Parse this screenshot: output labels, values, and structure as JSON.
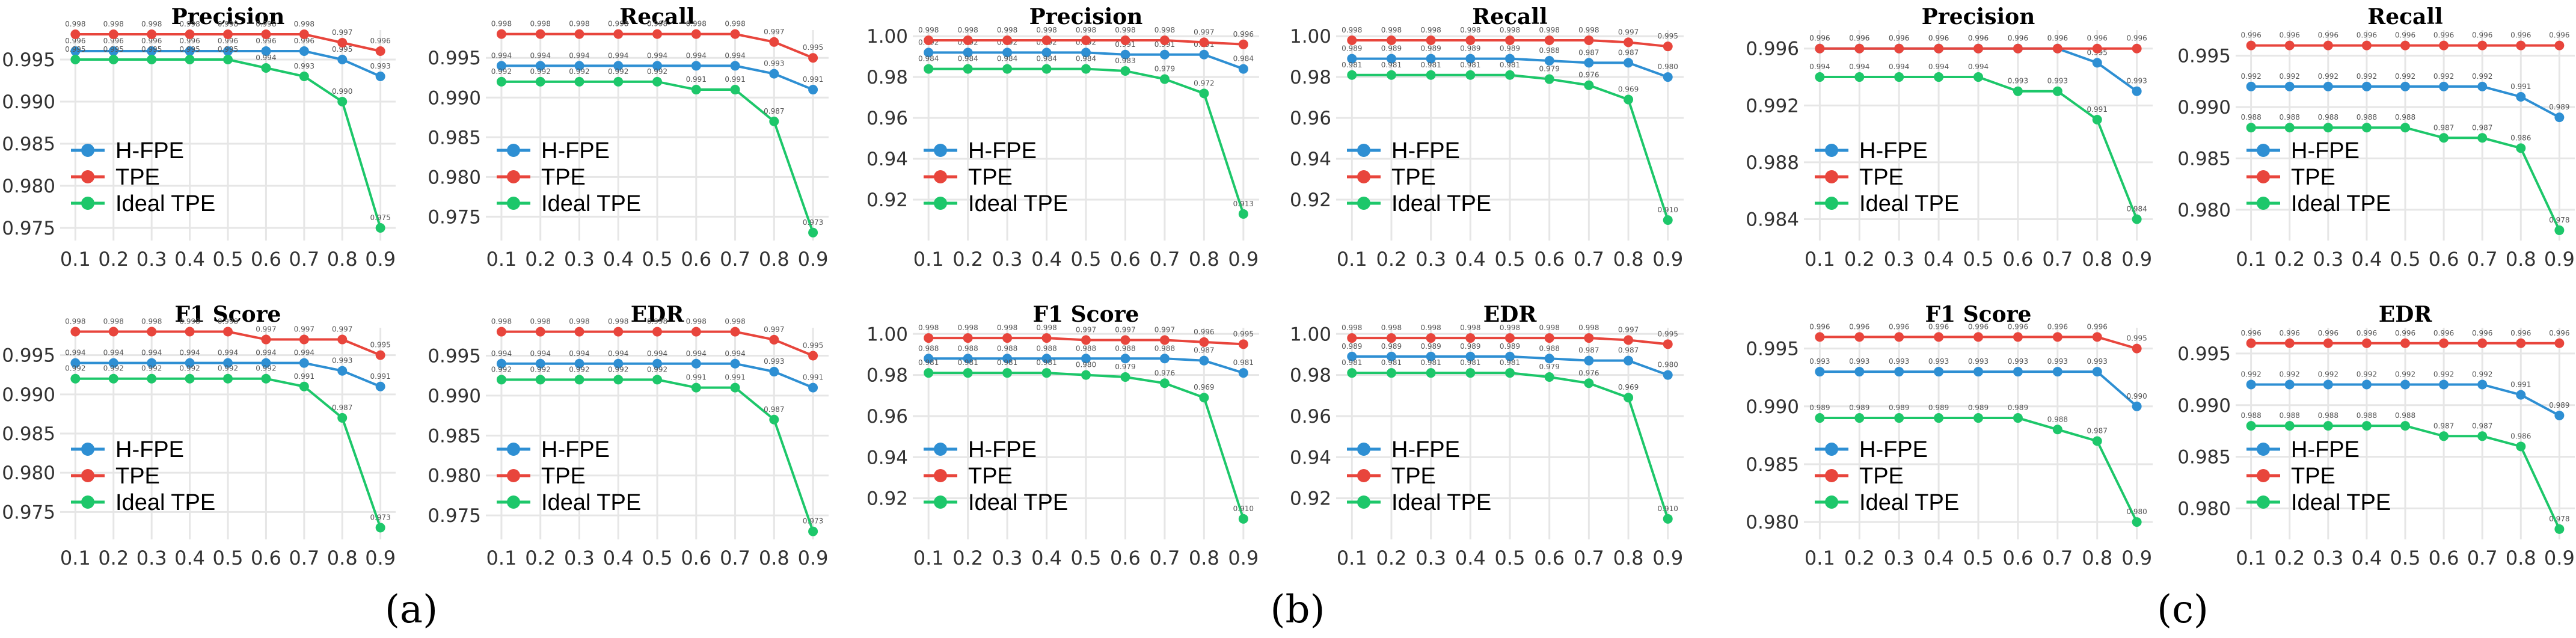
{
  "figure": {
    "groups": [
      {
        "label": "(a)"
      },
      {
        "label": "(b)"
      },
      {
        "label": "(c)"
      }
    ]
  },
  "chart_data": [
    {
      "type": "line",
      "group": "a",
      "title": "Precision",
      "x": [
        0.1,
        0.2,
        0.3,
        0.4,
        0.5,
        0.6,
        0.7,
        0.8,
        0.9
      ],
      "ylim": [
        0.9735,
        0.9985
      ],
      "yticks": [
        0.975,
        0.98,
        0.985,
        0.99,
        0.995
      ],
      "ytick_labels": [
        "0.975",
        "0.980",
        "0.985",
        "0.990",
        "0.995"
      ],
      "legend": "lower-left",
      "series": [
        {
          "name": "H-FPE",
          "color": "#2E8FD3",
          "values": [
            0.996,
            0.996,
            0.996,
            0.996,
            0.996,
            0.996,
            0.996,
            0.995,
            0.993
          ]
        },
        {
          "name": "TPE",
          "color": "#E8453C",
          "values": [
            0.998,
            0.998,
            0.998,
            0.998,
            0.998,
            0.998,
            0.998,
            0.997,
            0.996
          ]
        },
        {
          "name": "Ideal TPE",
          "color": "#1DC76A",
          "values": [
            0.995,
            0.995,
            0.995,
            0.995,
            0.995,
            0.994,
            0.993,
            0.99,
            0.975
          ]
        }
      ]
    },
    {
      "type": "line",
      "group": "a",
      "title": "Recall",
      "x": [
        0.1,
        0.2,
        0.3,
        0.4,
        0.5,
        0.6,
        0.7,
        0.8,
        0.9
      ],
      "ylim": [
        0.972,
        0.9985
      ],
      "yticks": [
        0.975,
        0.98,
        0.985,
        0.99,
        0.995
      ],
      "ytick_labels": [
        "0.975",
        "0.980",
        "0.985",
        "0.990",
        "0.995"
      ],
      "legend": "lower-left",
      "series": [
        {
          "name": "H-FPE",
          "color": "#2E8FD3",
          "values": [
            0.994,
            0.994,
            0.994,
            0.994,
            0.994,
            0.994,
            0.994,
            0.993,
            0.991
          ]
        },
        {
          "name": "TPE",
          "color": "#E8453C",
          "values": [
            0.998,
            0.998,
            0.998,
            0.998,
            0.998,
            0.998,
            0.998,
            0.997,
            0.995
          ]
        },
        {
          "name": "Ideal TPE",
          "color": "#1DC76A",
          "values": [
            0.992,
            0.992,
            0.992,
            0.992,
            0.992,
            0.991,
            0.991,
            0.987,
            0.973
          ]
        }
      ]
    },
    {
      "type": "line",
      "group": "a",
      "title": "F1 Score",
      "x": [
        0.1,
        0.2,
        0.3,
        0.4,
        0.5,
        0.6,
        0.7,
        0.8,
        0.9
      ],
      "ylim": [
        0.9715,
        0.9985
      ],
      "yticks": [
        0.975,
        0.98,
        0.985,
        0.99,
        0.995
      ],
      "ytick_labels": [
        "0.975",
        "0.980",
        "0.985",
        "0.990",
        "0.995"
      ],
      "legend": "lower-left",
      "series": [
        {
          "name": "H-FPE",
          "color": "#2E8FD3",
          "values": [
            0.994,
            0.994,
            0.994,
            0.994,
            0.994,
            0.994,
            0.994,
            0.993,
            0.991
          ]
        },
        {
          "name": "TPE",
          "color": "#E8453C",
          "values": [
            0.998,
            0.998,
            0.998,
            0.998,
            0.998,
            0.997,
            0.997,
            0.997,
            0.995
          ]
        },
        {
          "name": "Ideal TPE",
          "color": "#1DC76A",
          "values": [
            0.992,
            0.992,
            0.992,
            0.992,
            0.992,
            0.992,
            0.991,
            0.987,
            0.973
          ]
        }
      ]
    },
    {
      "type": "line",
      "group": "a",
      "title": "EDR",
      "x": [
        0.1,
        0.2,
        0.3,
        0.4,
        0.5,
        0.6,
        0.7,
        0.8,
        0.9
      ],
      "ylim": [
        0.972,
        0.9985
      ],
      "yticks": [
        0.975,
        0.98,
        0.985,
        0.99,
        0.995
      ],
      "ytick_labels": [
        "0.975",
        "0.980",
        "0.985",
        "0.990",
        "0.995"
      ],
      "legend": "lower-left",
      "series": [
        {
          "name": "H-FPE",
          "color": "#2E8FD3",
          "values": [
            0.994,
            0.994,
            0.994,
            0.994,
            0.994,
            0.994,
            0.994,
            0.993,
            0.991
          ]
        },
        {
          "name": "TPE",
          "color": "#E8453C",
          "values": [
            0.998,
            0.998,
            0.998,
            0.998,
            0.998,
            0.998,
            0.998,
            0.997,
            0.995
          ]
        },
        {
          "name": "Ideal TPE",
          "color": "#1DC76A",
          "values": [
            0.992,
            0.992,
            0.992,
            0.992,
            0.992,
            0.991,
            0.991,
            0.987,
            0.973
          ]
        }
      ]
    },
    {
      "type": "line",
      "group": "b",
      "title": "Precision",
      "x": [
        0.1,
        0.2,
        0.3,
        0.4,
        0.5,
        0.6,
        0.7,
        0.8,
        0.9
      ],
      "ylim": [
        0.9,
        1.003
      ],
      "yticks": [
        0.92,
        0.94,
        0.96,
        0.98,
        1.0
      ],
      "ytick_labels": [
        "0.92",
        "0.94",
        "0.96",
        "0.98",
        "1.00"
      ],
      "legend": "lower-left",
      "series": [
        {
          "name": "H-FPE",
          "color": "#2E8FD3",
          "values": [
            0.992,
            0.992,
            0.992,
            0.992,
            0.992,
            0.991,
            0.991,
            0.991,
            0.984
          ]
        },
        {
          "name": "TPE",
          "color": "#E8453C",
          "values": [
            0.998,
            0.998,
            0.998,
            0.998,
            0.998,
            0.998,
            0.998,
            0.997,
            0.996
          ]
        },
        {
          "name": "Ideal TPE",
          "color": "#1DC76A",
          "values": [
            0.984,
            0.984,
            0.984,
            0.984,
            0.984,
            0.983,
            0.979,
            0.972,
            0.913
          ]
        }
      ]
    },
    {
      "type": "line",
      "group": "b",
      "title": "Recall",
      "x": [
        0.1,
        0.2,
        0.3,
        0.4,
        0.5,
        0.6,
        0.7,
        0.8,
        0.9
      ],
      "ylim": [
        0.9,
        1.003
      ],
      "yticks": [
        0.92,
        0.94,
        0.96,
        0.98,
        1.0
      ],
      "ytick_labels": [
        "0.92",
        "0.94",
        "0.96",
        "0.98",
        "1.00"
      ],
      "legend": "lower-left",
      "series": [
        {
          "name": "H-FPE",
          "color": "#2E8FD3",
          "values": [
            0.989,
            0.989,
            0.989,
            0.989,
            0.989,
            0.988,
            0.987,
            0.987,
            0.98
          ]
        },
        {
          "name": "TPE",
          "color": "#E8453C",
          "values": [
            0.998,
            0.998,
            0.998,
            0.998,
            0.998,
            0.998,
            0.998,
            0.997,
            0.995
          ]
        },
        {
          "name": "Ideal TPE",
          "color": "#1DC76A",
          "values": [
            0.981,
            0.981,
            0.981,
            0.981,
            0.981,
            0.979,
            0.976,
            0.969,
            0.91
          ]
        }
      ]
    },
    {
      "type": "line",
      "group": "b",
      "title": "F1 Score",
      "x": [
        0.1,
        0.2,
        0.3,
        0.4,
        0.5,
        0.6,
        0.7,
        0.8,
        0.9
      ],
      "ylim": [
        0.9,
        1.003
      ],
      "yticks": [
        0.92,
        0.94,
        0.96,
        0.98,
        1.0
      ],
      "ytick_labels": [
        "0.92",
        "0.94",
        "0.96",
        "0.98",
        "1.00"
      ],
      "legend": "lower-left",
      "series": [
        {
          "name": "H-FPE",
          "color": "#2E8FD3",
          "values": [
            0.988,
            0.988,
            0.988,
            0.988,
            0.988,
            0.988,
            0.988,
            0.987,
            0.981
          ]
        },
        {
          "name": "TPE",
          "color": "#E8453C",
          "values": [
            0.998,
            0.998,
            0.998,
            0.998,
            0.997,
            0.997,
            0.997,
            0.996,
            0.995
          ]
        },
        {
          "name": "Ideal TPE",
          "color": "#1DC76A",
          "values": [
            0.981,
            0.981,
            0.981,
            0.981,
            0.98,
            0.979,
            0.976,
            0.969,
            0.91
          ]
        }
      ]
    },
    {
      "type": "line",
      "group": "b",
      "title": "EDR",
      "x": [
        0.1,
        0.2,
        0.3,
        0.4,
        0.5,
        0.6,
        0.7,
        0.8,
        0.9
      ],
      "ylim": [
        0.9,
        1.003
      ],
      "yticks": [
        0.92,
        0.94,
        0.96,
        0.98,
        1.0
      ],
      "ytick_labels": [
        "0.92",
        "0.94",
        "0.96",
        "0.98",
        "1.00"
      ],
      "legend": "lower-left",
      "series": [
        {
          "name": "H-FPE",
          "color": "#2E8FD3",
          "values": [
            0.989,
            0.989,
            0.989,
            0.989,
            0.989,
            0.988,
            0.987,
            0.987,
            0.98
          ]
        },
        {
          "name": "TPE",
          "color": "#E8453C",
          "values": [
            0.998,
            0.998,
            0.998,
            0.998,
            0.998,
            0.998,
            0.998,
            0.997,
            0.995
          ]
        },
        {
          "name": "Ideal TPE",
          "color": "#1DC76A",
          "values": [
            0.981,
            0.981,
            0.981,
            0.981,
            0.981,
            0.979,
            0.976,
            0.969,
            0.91
          ]
        }
      ]
    },
    {
      "type": "line",
      "group": "c",
      "title": "Precision",
      "x": [
        0.1,
        0.2,
        0.3,
        0.4,
        0.5,
        0.6,
        0.7,
        0.8,
        0.9
      ],
      "ylim": [
        0.9825,
        0.9973
      ],
      "yticks": [
        0.984,
        0.988,
        0.992,
        0.996
      ],
      "ytick_labels": [
        "0.984",
        "0.988",
        "0.992",
        "0.996"
      ],
      "legend": "lower-left",
      "series": [
        {
          "name": "H-FPE",
          "color": "#2E8FD3",
          "values": [
            0.996,
            0.996,
            0.996,
            0.996,
            0.996,
            0.996,
            0.996,
            0.995,
            0.993
          ]
        },
        {
          "name": "TPE",
          "color": "#E8453C",
          "values": [
            0.996,
            0.996,
            0.996,
            0.996,
            0.996,
            0.996,
            0.996,
            0.996,
            0.996
          ]
        },
        {
          "name": "Ideal TPE",
          "color": "#1DC76A",
          "values": [
            0.994,
            0.994,
            0.994,
            0.994,
            0.994,
            0.993,
            0.993,
            0.991,
            0.984
          ]
        }
      ]
    },
    {
      "type": "line",
      "group": "c",
      "title": "Recall",
      "x": [
        0.1,
        0.2,
        0.3,
        0.4,
        0.5,
        0.6,
        0.7,
        0.8,
        0.9
      ],
      "ylim": [
        0.977,
        0.9975
      ],
      "yticks": [
        0.98,
        0.985,
        0.99,
        0.995
      ],
      "ytick_labels": [
        "0.980",
        "0.985",
        "0.990",
        "0.995"
      ],
      "legend": "lower-left",
      "series": [
        {
          "name": "H-FPE",
          "color": "#2E8FD3",
          "values": [
            0.992,
            0.992,
            0.992,
            0.992,
            0.992,
            0.992,
            0.992,
            0.991,
            0.989
          ]
        },
        {
          "name": "TPE",
          "color": "#E8453C",
          "values": [
            0.996,
            0.996,
            0.996,
            0.996,
            0.996,
            0.996,
            0.996,
            0.996,
            0.996
          ]
        },
        {
          "name": "Ideal TPE",
          "color": "#1DC76A",
          "values": [
            0.988,
            0.988,
            0.988,
            0.988,
            0.988,
            0.987,
            0.987,
            0.986,
            0.978
          ]
        }
      ]
    },
    {
      "type": "line",
      "group": "c",
      "title": "F1 Score",
      "x": [
        0.1,
        0.2,
        0.3,
        0.4,
        0.5,
        0.6,
        0.7,
        0.8,
        0.9
      ],
      "ylim": [
        0.9785,
        0.9968
      ],
      "yticks": [
        0.98,
        0.985,
        0.99,
        0.995
      ],
      "ytick_labels": [
        "0.980",
        "0.985",
        "0.990",
        "0.995"
      ],
      "legend": "lower-left",
      "series": [
        {
          "name": "H-FPE",
          "color": "#2E8FD3",
          "values": [
            0.993,
            0.993,
            0.993,
            0.993,
            0.993,
            0.993,
            0.993,
            0.993,
            0.99
          ]
        },
        {
          "name": "TPE",
          "color": "#E8453C",
          "values": [
            0.996,
            0.996,
            0.996,
            0.996,
            0.996,
            0.996,
            0.996,
            0.996,
            0.995
          ]
        },
        {
          "name": "Ideal TPE",
          "color": "#1DC76A",
          "values": [
            0.989,
            0.989,
            0.989,
            0.989,
            0.989,
            0.989,
            0.988,
            0.987,
            0.98
          ]
        }
      ]
    },
    {
      "type": "line",
      "group": "c",
      "title": "EDR",
      "x": [
        0.1,
        0.2,
        0.3,
        0.4,
        0.5,
        0.6,
        0.7,
        0.8,
        0.9
      ],
      "ylim": [
        0.977,
        0.9975
      ],
      "yticks": [
        0.98,
        0.985,
        0.99,
        0.995
      ],
      "ytick_labels": [
        "0.980",
        "0.985",
        "0.990",
        "0.995"
      ],
      "legend": "lower-left",
      "series": [
        {
          "name": "H-FPE",
          "color": "#2E8FD3",
          "values": [
            0.992,
            0.992,
            0.992,
            0.992,
            0.992,
            0.992,
            0.992,
            0.991,
            0.989
          ]
        },
        {
          "name": "TPE",
          "color": "#E8453C",
          "values": [
            0.996,
            0.996,
            0.996,
            0.996,
            0.996,
            0.996,
            0.996,
            0.996,
            0.996
          ]
        },
        {
          "name": "Ideal TPE",
          "color": "#1DC76A",
          "values": [
            0.988,
            0.988,
            0.988,
            0.988,
            0.988,
            0.987,
            0.987,
            0.986,
            0.978
          ]
        }
      ]
    }
  ]
}
